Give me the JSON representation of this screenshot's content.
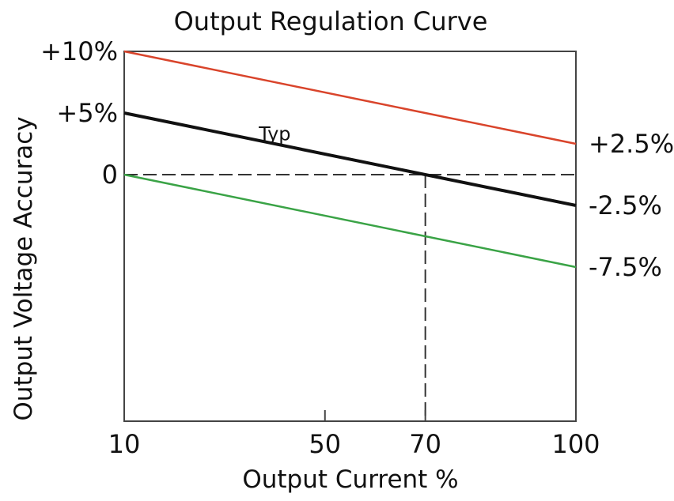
{
  "chart_data": {
    "type": "line",
    "title": "Output Regulation Curve",
    "xlabel": "Output Current %",
    "ylabel": "Output Voltage Accuracy",
    "xlim": [
      10,
      100
    ],
    "ylim": [
      -20,
      10
    ],
    "x_ticks": [
      {
        "value": 10,
        "label": "10"
      },
      {
        "value": 50,
        "label": "50"
      },
      {
        "value": 70,
        "label": "70"
      },
      {
        "value": 100,
        "label": "100"
      }
    ],
    "y_ticks_left": [
      {
        "value": 10,
        "label": "+10%"
      },
      {
        "value": 5,
        "label": "+5%"
      },
      {
        "value": 0,
        "label": "0"
      }
    ],
    "y_labels_right": [
      {
        "value": 2.5,
        "label": "+2.5%"
      },
      {
        "value": -2.5,
        "label": "-2.5%"
      },
      {
        "value": -7.5,
        "label": "-7.5%"
      }
    ],
    "series": [
      {
        "color": "#d9442b",
        "x": [
          10,
          100
        ],
        "y": [
          10,
          2.5
        ]
      },
      {
        "color": "#111111",
        "x": [
          10,
          100
        ],
        "y": [
          5,
          -2.5
        ],
        "label": "Typ",
        "label_at": [
          40,
          2.8
        ]
      },
      {
        "color": "#3aa346",
        "x": [
          10,
          100
        ],
        "y": [
          0,
          -7.5
        ]
      }
    ],
    "reference_lines": [
      {
        "orientation": "horizontal",
        "value": 0,
        "style": "dashed"
      },
      {
        "orientation": "vertical",
        "value": 70,
        "style": "dashed"
      }
    ],
    "grid": false,
    "legend": "none"
  }
}
